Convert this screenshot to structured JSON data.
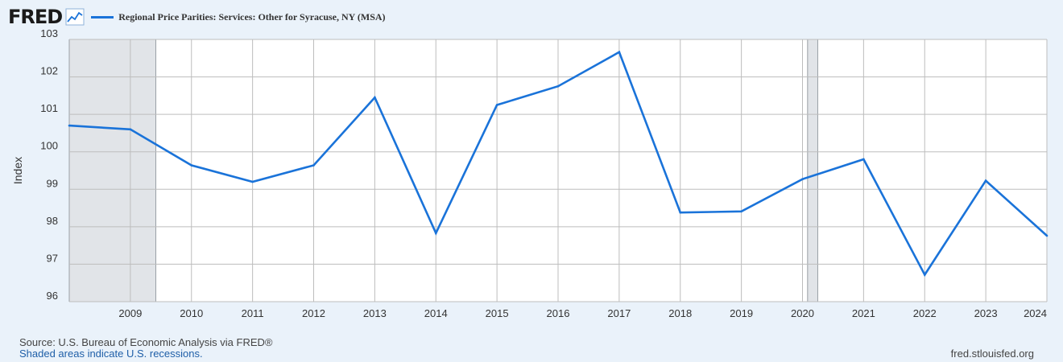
{
  "header": {
    "logo": "FRED",
    "logo_icon": "line-chart-icon"
  },
  "colors": {
    "series": "#1a73d9",
    "recession": "#e1e4e8",
    "grid": "#bdbdbd",
    "background": "#eaf2fa",
    "plot": "#ffffff"
  },
  "chart_data": {
    "type": "line",
    "ylabel": "Index",
    "ylim": [
      96,
      103
    ],
    "yticks": [
      96,
      97,
      98,
      99,
      100,
      101,
      102,
      103
    ],
    "xlim": [
      "2008",
      "2024"
    ],
    "xticks": [
      "2009",
      "2010",
      "2011",
      "2012",
      "2013",
      "2014",
      "2015",
      "2016",
      "2017",
      "2018",
      "2019",
      "2020",
      "2021",
      "2022",
      "2023",
      "2024"
    ],
    "grid": true,
    "legend_position": "top-left",
    "recessions": [
      {
        "start": "2008-01",
        "end": "2009-06"
      },
      {
        "start": "2020-02",
        "end": "2020-04"
      }
    ],
    "series": [
      {
        "name": "Regional Price Parities: Services: Other for Syracuse, NY (MSA)",
        "x": [
          "2008",
          "2009",
          "2010",
          "2011",
          "2012",
          "2013",
          "2014",
          "2015",
          "2016",
          "2017",
          "2018",
          "2019",
          "2020",
          "2021",
          "2022",
          "2023",
          "2024"
        ],
        "values": [
          100.7,
          100.6,
          99.64,
          99.2,
          99.64,
          101.45,
          97.83,
          101.25,
          101.75,
          102.66,
          98.38,
          98.41,
          99.27,
          99.8,
          96.72,
          99.23,
          97.76
        ]
      }
    ]
  },
  "footer": {
    "source": "Source: U.S. Bureau of Economic Analysis via FRED®",
    "recession_note": "Shaded areas indicate U.S. recessions.",
    "url": "fred.stlouisfed.org"
  }
}
